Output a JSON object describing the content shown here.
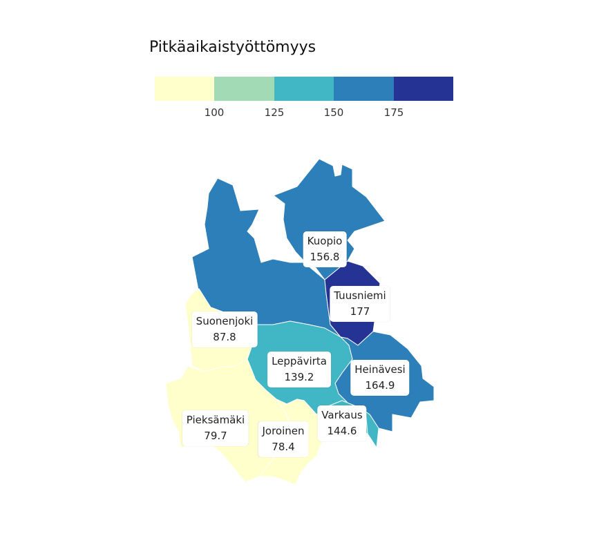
{
  "title": "Pitkäaikaistyöttömyys",
  "legend": {
    "bins": [
      "#ffffcc",
      "#a1dab4",
      "#41b6c4",
      "#2c7fb8",
      "#253494"
    ],
    "ticks": [
      "100",
      "125",
      "150",
      "175"
    ]
  },
  "regions": [
    {
      "name": "Kuopio",
      "value": "156.8",
      "color": "#2c7fb8"
    },
    {
      "name": "Tuusniemi",
      "value": "177",
      "color": "#253494"
    },
    {
      "name": "Suonenjoki",
      "value": "87.8",
      "color": "#ffffcc"
    },
    {
      "name": "Leppävirta",
      "value": "139.2",
      "color": "#41b6c4"
    },
    {
      "name": "Heinävesi",
      "value": "164.9",
      "color": "#2c7fb8"
    },
    {
      "name": "Varkaus",
      "value": "144.6",
      "color": "#41b6c4"
    },
    {
      "name": "Pieksämäki",
      "value": "79.7",
      "color": "#ffffcc"
    },
    {
      "name": "Joroinen",
      "value": "78.4",
      "color": "#ffffcc"
    }
  ]
}
